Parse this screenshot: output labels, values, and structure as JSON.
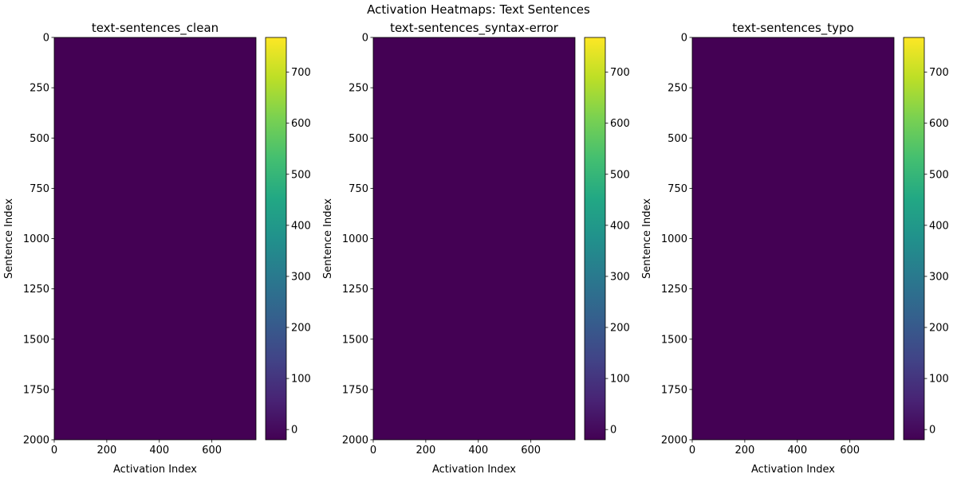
{
  "figure": {
    "title": "Activation Heatmaps: Text Sentences"
  },
  "chart_data": [
    {
      "type": "heatmap",
      "title": "text-sentences_clean",
      "xlabel": "Activation Index",
      "ylabel": "Sentence Index",
      "x_ticks": [
        0,
        200,
        400,
        600
      ],
      "y_ticks": [
        0,
        250,
        500,
        750,
        1000,
        1250,
        1500,
        1750,
        2000
      ],
      "xlim": [
        0,
        768
      ],
      "ylim": [
        2000,
        0
      ],
      "colorscale": "viridis",
      "value_range": [
        -20,
        768
      ],
      "colorbar_ticks": [
        0,
        100,
        200,
        300,
        400,
        500,
        600,
        700
      ],
      "fill_value": 0,
      "fill_color": "#440154"
    },
    {
      "type": "heatmap",
      "title": "text-sentences_syntax-error",
      "xlabel": "Activation Index",
      "ylabel": "Sentence Index",
      "x_ticks": [
        0,
        200,
        400,
        600
      ],
      "y_ticks": [
        0,
        250,
        500,
        750,
        1000,
        1250,
        1500,
        1750,
        2000
      ],
      "xlim": [
        0,
        768
      ],
      "ylim": [
        2000,
        0
      ],
      "colorscale": "viridis",
      "value_range": [
        -20,
        768
      ],
      "colorbar_ticks": [
        0,
        100,
        200,
        300,
        400,
        500,
        600,
        700
      ],
      "fill_value": 0,
      "fill_color": "#440154"
    },
    {
      "type": "heatmap",
      "title": "text-sentences_typo",
      "xlabel": "Activation Index",
      "ylabel": "Sentence Index",
      "x_ticks": [
        0,
        200,
        400,
        600
      ],
      "y_ticks": [
        0,
        250,
        500,
        750,
        1000,
        1250,
        1500,
        1750,
        2000
      ],
      "xlim": [
        0,
        768
      ],
      "ylim": [
        2000,
        0
      ],
      "colorscale": "viridis",
      "value_range": [
        -20,
        768
      ],
      "colorbar_ticks": [
        0,
        100,
        200,
        300,
        400,
        500,
        600,
        700
      ],
      "fill_value": 0,
      "fill_color": "#440154"
    }
  ]
}
